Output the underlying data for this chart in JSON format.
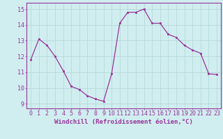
{
  "x": [
    0,
    1,
    2,
    3,
    4,
    5,
    6,
    7,
    8,
    9,
    10,
    11,
    12,
    13,
    14,
    15,
    16,
    17,
    18,
    19,
    20,
    21,
    22,
    23
  ],
  "y": [
    11.8,
    13.1,
    12.7,
    12.0,
    11.1,
    10.1,
    9.9,
    9.5,
    9.3,
    9.15,
    10.9,
    14.1,
    14.8,
    14.8,
    15.0,
    14.1,
    14.1,
    13.4,
    13.2,
    12.7,
    12.4,
    12.2,
    10.9,
    10.85
  ],
  "line_color": "#993399",
  "marker": "s",
  "marker_size": 2.0,
  "bg_color": "#d0eef0",
  "grid_color": "#b8d8da",
  "ylabel_ticks": [
    9,
    10,
    11,
    12,
    13,
    14,
    15
  ],
  "xlabel": "Windchill (Refroidissement éolien,°C)",
  "xlim": [
    -0.5,
    23.5
  ],
  "ylim": [
    8.7,
    15.4
  ],
  "xlabel_fontsize": 6.5,
  "tick_fontsize": 6.0
}
